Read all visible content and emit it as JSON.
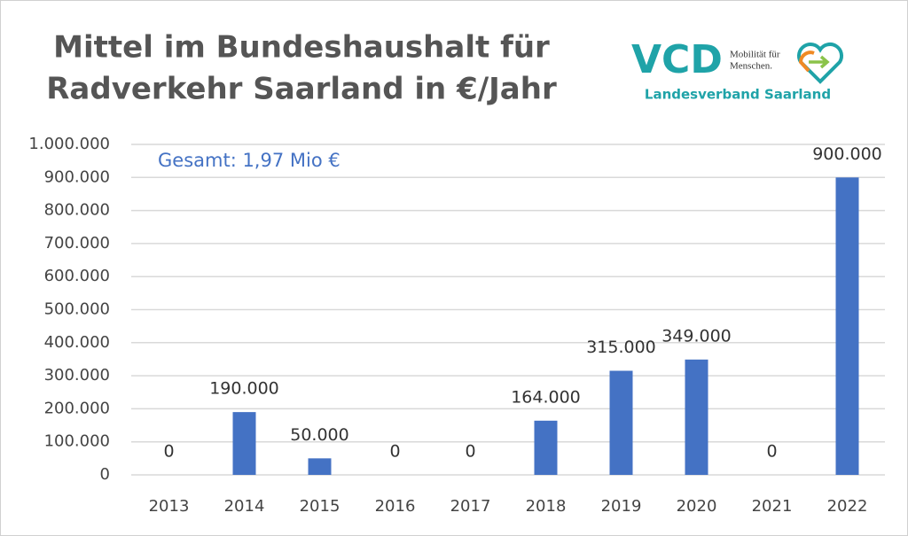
{
  "chart_data": {
    "type": "bar",
    "title": [
      "Mittel im Bundeshaushalt für",
      "Radverkehr Saarland in €/Jahr"
    ],
    "annotation": "Gesamt: 1,97 Mio €",
    "logo": {
      "name": "VCD",
      "tagline": [
        "Mobilität für",
        "Menschen."
      ],
      "subtitle": "Landesverband Saarland"
    },
    "categories": [
      "2013",
      "2014",
      "2015",
      "2016",
      "2017",
      "2018",
      "2019",
      "2020",
      "2021",
      "2022"
    ],
    "values": [
      0,
      190000,
      50000,
      0,
      0,
      164000,
      315000,
      349000,
      0,
      900000
    ],
    "value_labels": [
      "0",
      "190.000",
      "50.000",
      "0",
      "0",
      "164.000",
      "315.000",
      "349.000",
      "0",
      "900.000"
    ],
    "color": "#4472c4",
    "ylim": [
      0,
      1000000
    ],
    "yticks": [
      0,
      {
        "value": 100000,
        "label": "100.000"
      },
      {
        "value": 200000,
        "label": "200.000"
      },
      {
        "value": 300000,
        "label": "300.000"
      },
      {
        "value": 400000,
        "label": "400.000"
      },
      {
        "value": 500000,
        "label": "500.000"
      },
      {
        "value": 600000,
        "label": "600.000"
      },
      {
        "value": 700000,
        "label": "700.000"
      },
      {
        "value": 800000,
        "label": "800.000"
      },
      {
        "value": 900000,
        "label": "900.000"
      },
      {
        "value": 1000000,
        "label": "1.000.000"
      }
    ],
    "grid": true
  }
}
